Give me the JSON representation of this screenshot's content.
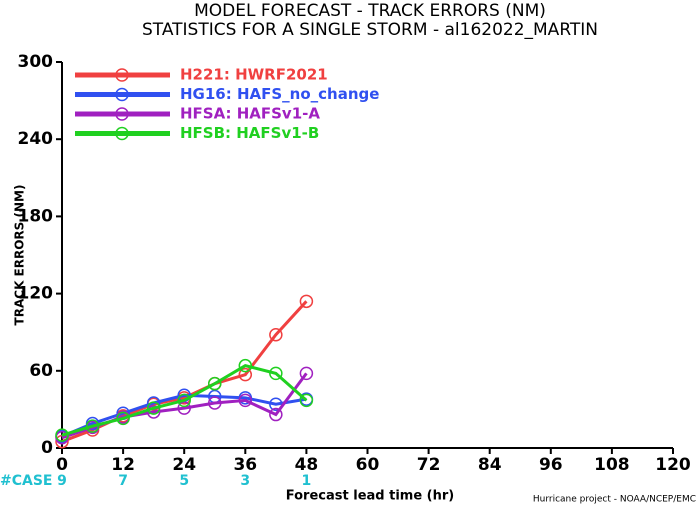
{
  "chart_data": {
    "type": "line",
    "title": "MODEL FORECAST - TRACK ERRORS (NM)",
    "subtitle": "STATISTICS FOR A SINGLE STORM - al162022_MARTIN",
    "x_label": "Forecast lead time (hr)",
    "y_label": "TRACK ERRORS (NM)",
    "footer": "Hurricane project - NOAA/NCEP/EMC",
    "x": [
      0,
      6,
      12,
      18,
      24,
      30,
      36,
      42,
      48
    ],
    "series": [
      {
        "name": "H221: HWRF2021",
        "color": "#f04040",
        "values": [
          5,
          14,
          25,
          34,
          39,
          50,
          57,
          88,
          114
        ]
      },
      {
        "name": "HG16: HAFS_no_change",
        "color": "#3050f0",
        "values": [
          9,
          19,
          27,
          35,
          41,
          40,
          39,
          34,
          38
        ]
      },
      {
        "name": "HFSA: HAFSv1-A",
        "color": "#a020c0",
        "values": [
          8,
          16,
          24,
          28,
          31,
          35,
          37,
          26,
          58
        ]
      },
      {
        "name": "HFSB: HAFSv1-B",
        "color": "#20d020",
        "values": [
          10,
          17,
          23,
          31,
          37,
          50,
          64,
          58,
          37
        ]
      }
    ],
    "cases": {
      "label": "#CASE",
      "color": "#20c0d0",
      "x": [
        0,
        12,
        24,
        36,
        48
      ],
      "values": [
        9,
        7,
        5,
        3,
        1
      ]
    },
    "xlim": [
      0,
      120
    ],
    "xticks": [
      0,
      12,
      24,
      36,
      48,
      60,
      72,
      84,
      96,
      108,
      120
    ],
    "ylim": [
      0,
      300
    ],
    "yticks": [
      0,
      60,
      120,
      180,
      240,
      300
    ]
  }
}
